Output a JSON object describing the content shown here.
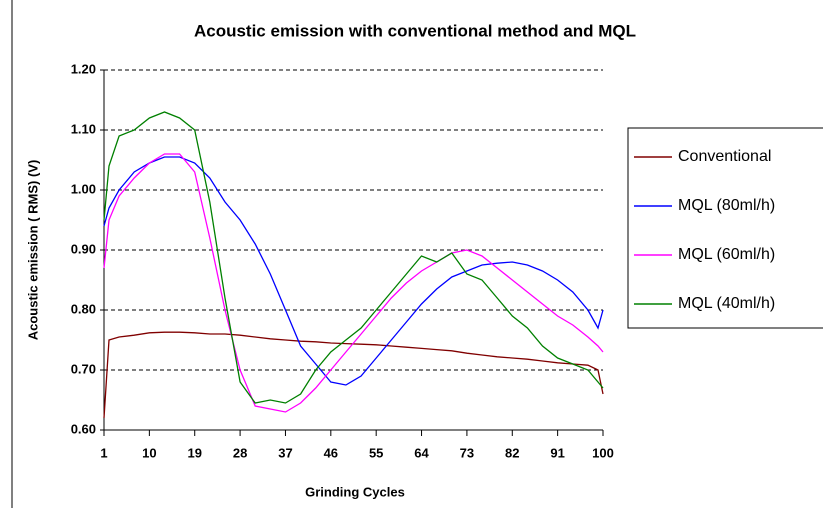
{
  "chart_data": {
    "type": "line",
    "title": "Acoustic emission with conventional method and MQL",
    "x_label": "Grinding Cycles",
    "y_label": "Acoustic emission ( RMS) (V)",
    "x": [
      1,
      2,
      4,
      7,
      10,
      13,
      16,
      19,
      22,
      25,
      28,
      31,
      34,
      37,
      40,
      43,
      46,
      49,
      52,
      55,
      58,
      61,
      64,
      67,
      70,
      73,
      76,
      79,
      82,
      85,
      88,
      91,
      94,
      97,
      99,
      100
    ],
    "series": [
      {
        "name": "Conventional",
        "color": "#800000",
        "values": [
          0.62,
          0.75,
          0.755,
          0.758,
          0.762,
          0.763,
          0.763,
          0.762,
          0.76,
          0.76,
          0.758,
          0.755,
          0.752,
          0.75,
          0.748,
          0.747,
          0.745,
          0.744,
          0.743,
          0.742,
          0.74,
          0.738,
          0.736,
          0.734,
          0.732,
          0.728,
          0.725,
          0.722,
          0.72,
          0.718,
          0.715,
          0.712,
          0.71,
          0.708,
          0.7,
          0.66
        ]
      },
      {
        "name": "MQL (80ml/h)",
        "color": "#0000ff",
        "values": [
          0.94,
          0.97,
          1.0,
          1.03,
          1.045,
          1.055,
          1.055,
          1.045,
          1.02,
          0.98,
          0.95,
          0.91,
          0.86,
          0.8,
          0.74,
          0.71,
          0.68,
          0.675,
          0.69,
          0.72,
          0.75,
          0.78,
          0.81,
          0.835,
          0.855,
          0.865,
          0.875,
          0.878,
          0.88,
          0.875,
          0.865,
          0.85,
          0.83,
          0.8,
          0.77,
          0.8
        ]
      },
      {
        "name": "MQL (60ml/h)",
        "color": "#ff00ff",
        "values": [
          0.87,
          0.95,
          0.99,
          1.02,
          1.045,
          1.06,
          1.06,
          1.03,
          0.92,
          0.8,
          0.7,
          0.64,
          0.635,
          0.63,
          0.645,
          0.67,
          0.7,
          0.73,
          0.76,
          0.79,
          0.82,
          0.845,
          0.865,
          0.88,
          0.895,
          0.9,
          0.89,
          0.87,
          0.85,
          0.83,
          0.81,
          0.79,
          0.775,
          0.755,
          0.74,
          0.73
        ]
      },
      {
        "name": "MQL (40ml/h)",
        "color": "#008000",
        "values": [
          0.95,
          1.04,
          1.09,
          1.1,
          1.12,
          1.13,
          1.12,
          1.1,
          0.98,
          0.82,
          0.68,
          0.645,
          0.65,
          0.645,
          0.66,
          0.7,
          0.73,
          0.75,
          0.77,
          0.8,
          0.83,
          0.86,
          0.89,
          0.88,
          0.895,
          0.86,
          0.85,
          0.82,
          0.79,
          0.77,
          0.74,
          0.72,
          0.71,
          0.7,
          0.68,
          0.67
        ]
      }
    ],
    "xlim": [
      1,
      100
    ],
    "xticks": [
      1,
      10,
      19,
      28,
      37,
      46,
      55,
      64,
      73,
      82,
      91,
      100
    ],
    "ylim": [
      0.6,
      1.2
    ],
    "yticks": [
      {
        "value": 0.6,
        "label": "0.60"
      },
      {
        "value": 0.7,
        "label": "0.70"
      },
      {
        "value": 0.8,
        "label": "0.80"
      },
      {
        "value": 0.9,
        "label": "0.90"
      },
      {
        "value": 1.0,
        "label": "1.00"
      },
      {
        "value": 1.1,
        "label": "1.10"
      },
      {
        "value": 1.2,
        "label": "1.20"
      }
    ],
    "grid": true,
    "legend": "right"
  }
}
